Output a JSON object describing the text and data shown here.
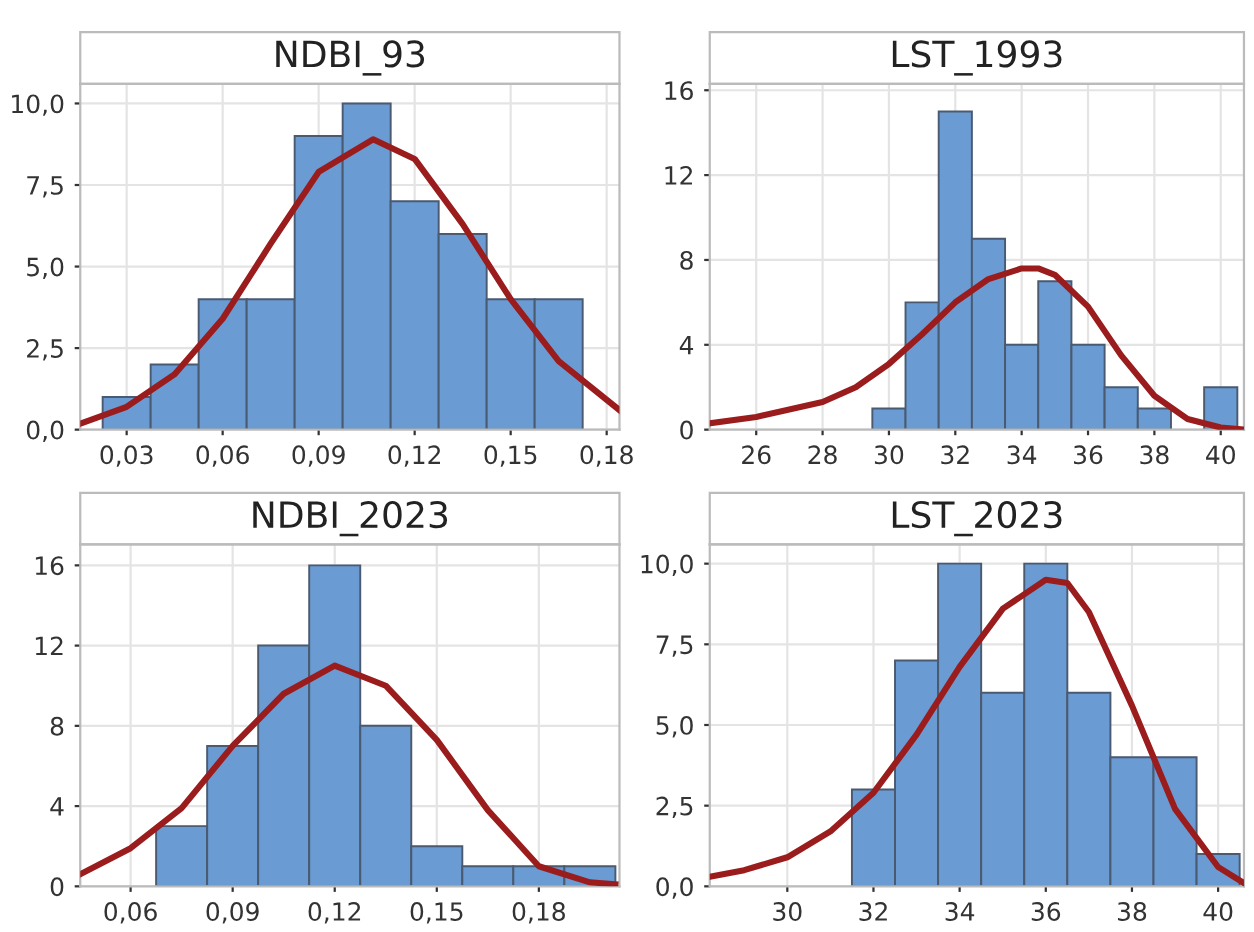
{
  "chart_data": [
    {
      "type": "histogram",
      "title": "NDBI_93",
      "bins": [
        0.0225,
        0.0375,
        0.0525,
        0.0675,
        0.0825,
        0.0975,
        0.1125,
        0.1275,
        0.1425,
        0.1575,
        0.1725
      ],
      "values": [
        1,
        2,
        4,
        4,
        9,
        10,
        7,
        6,
        4,
        4
      ],
      "color": "#6a9bd3",
      "series": [
        {
          "type": "line",
          "color": "#9b1c1c",
          "x": [
            0.016,
            0.03,
            0.045,
            0.06,
            0.075,
            0.09,
            0.107,
            0.12,
            0.135,
            0.15,
            0.165,
            0.184
          ],
          "values": [
            0.2,
            0.7,
            1.7,
            3.4,
            5.7,
            7.9,
            8.9,
            8.3,
            6.3,
            4.0,
            2.1,
            0.6
          ]
        }
      ],
      "xlim": [
        0.0155,
        0.184
      ],
      "ylim": [
        0,
        10.6
      ],
      "xticks": [
        {
          "value": 0.03,
          "label": "0,03"
        },
        {
          "value": 0.06,
          "label": "0,06"
        },
        {
          "value": 0.09,
          "label": "0,09"
        },
        {
          "value": 0.12,
          "label": "0,12"
        },
        {
          "value": 0.15,
          "label": "0,15"
        },
        {
          "value": 0.18,
          "label": "0,18"
        }
      ],
      "yticks": [
        {
          "value": 0,
          "label": "0,0"
        },
        {
          "value": 2.5,
          "label": "2,5"
        },
        {
          "value": 5,
          "label": "5,0"
        },
        {
          "value": 7.5,
          "label": "7,5"
        },
        {
          "value": 10,
          "label": "10,0"
        }
      ],
      "grid": true
    },
    {
      "type": "histogram",
      "title": "LST_1993",
      "bins": [
        29.5,
        30.5,
        31.5,
        32.5,
        33.5,
        34.5,
        35.5,
        36.5,
        37.5,
        38.5,
        39.5,
        40.5
      ],
      "values": [
        1,
        6,
        15,
        9,
        4,
        7,
        4,
        2,
        1,
        0,
        2
      ],
      "color": "#6a9bd3",
      "series": [
        {
          "type": "line",
          "color": "#9b1c1c",
          "x": [
            24.6,
            26,
            28,
            29,
            30,
            31,
            32,
            33,
            34,
            34.5,
            35,
            36,
            37,
            38,
            39,
            40,
            40.7
          ],
          "values": [
            0.3,
            0.6,
            1.3,
            2.0,
            3.1,
            4.5,
            6.0,
            7.1,
            7.6,
            7.6,
            7.3,
            5.8,
            3.5,
            1.6,
            0.5,
            0.1,
            0.0
          ]
        }
      ],
      "xlim": [
        24.6,
        40.7
      ],
      "ylim": [
        0,
        16.3
      ],
      "xticks": [
        26,
        28,
        30,
        32,
        34,
        36,
        38,
        40
      ],
      "yticks": [
        0,
        4,
        8,
        12,
        16
      ],
      "grid": true
    },
    {
      "type": "histogram",
      "title": "NDBI_2023",
      "bins": [
        0.0675,
        0.0825,
        0.0975,
        0.1125,
        0.1275,
        0.1425,
        0.1575,
        0.1725,
        0.1875,
        0.2025
      ],
      "values": [
        3,
        7,
        12,
        16,
        8,
        2,
        1,
        1,
        1
      ],
      "color": "#6a9bd3",
      "series": [
        {
          "type": "line",
          "color": "#9b1c1c",
          "x": [
            0.0452,
            0.06,
            0.075,
            0.09,
            0.105,
            0.12,
            0.135,
            0.15,
            0.165,
            0.18,
            0.195,
            0.2025
          ],
          "values": [
            0.6,
            1.9,
            3.9,
            7.0,
            9.6,
            11.0,
            10.0,
            7.3,
            3.8,
            1.0,
            0.2,
            0.1
          ]
        }
      ],
      "xlim": [
        0.0452,
        0.2037
      ],
      "ylim": [
        0,
        17.05
      ],
      "xticks": [
        {
          "value": 0.06,
          "label": "0,06"
        },
        {
          "value": 0.09,
          "label": "0,09"
        },
        {
          "value": 0.12,
          "label": "0,12"
        },
        {
          "value": 0.15,
          "label": "0,15"
        },
        {
          "value": 0.18,
          "label": "0,18"
        }
      ],
      "yticks": [
        0,
        4,
        8,
        12,
        16
      ],
      "grid": true
    },
    {
      "type": "histogram",
      "title": "LST_2023",
      "bins": [
        31.5,
        32.5,
        33.5,
        34.5,
        35.5,
        36.5,
        37.5,
        38.5,
        39.5,
        40.5
      ],
      "values": [
        3,
        7,
        10,
        6,
        10,
        6,
        4,
        4,
        1
      ],
      "color": "#6a9bd3",
      "series": [
        {
          "type": "line",
          "color": "#9b1c1c",
          "x": [
            28.2,
            29,
            30,
            31,
            32,
            33,
            34,
            35,
            36,
            36.5,
            37,
            38,
            39,
            40,
            40.6
          ],
          "values": [
            0.3,
            0.5,
            0.9,
            1.7,
            2.9,
            4.7,
            6.8,
            8.6,
            9.5,
            9.4,
            8.5,
            5.6,
            2.4,
            0.6,
            0.1
          ]
        }
      ],
      "xlim": [
        28.2,
        40.6
      ],
      "ylim": [
        0,
        10.6
      ],
      "xticks": [
        30,
        32,
        34,
        36,
        38,
        40
      ],
      "yticks": [
        {
          "value": 0,
          "label": "0,0"
        },
        {
          "value": 2.5,
          "label": "2,5"
        },
        {
          "value": 5,
          "label": "5,0"
        },
        {
          "value": 7.5,
          "label": "7,5"
        },
        {
          "value": 10,
          "label": "10,0"
        }
      ],
      "grid": true
    }
  ]
}
